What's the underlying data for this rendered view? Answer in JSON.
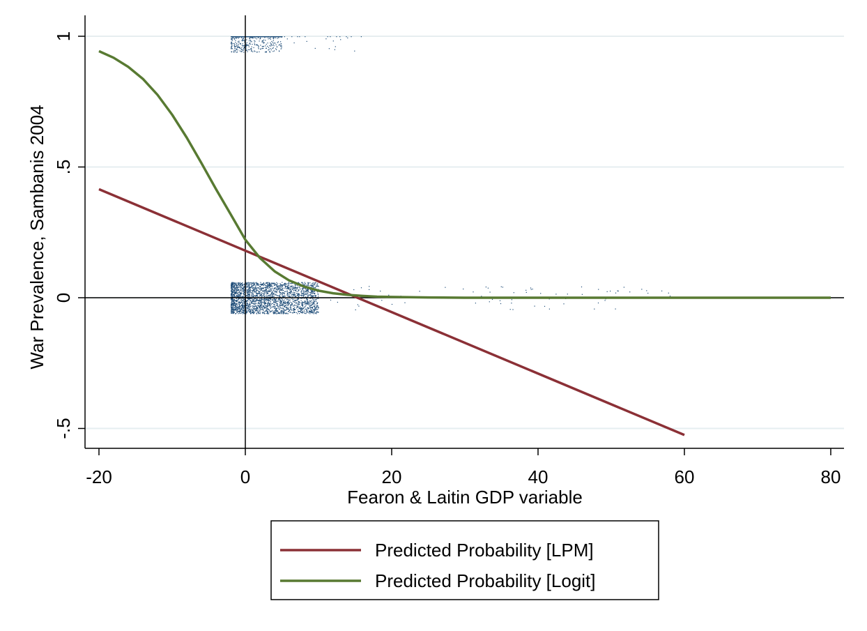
{
  "chart_data": {
    "type": "scatter",
    "title": "",
    "xlabel": "Fearon & Laitin GDP variable",
    "ylabel": "War Prevalence, Sambanis 2004",
    "xlim": [
      -22,
      82
    ],
    "ylim": [
      -0.58,
      1.05
    ],
    "xticks": [
      -20,
      0,
      20,
      40,
      60,
      80
    ],
    "xtick_labels": [
      "-20",
      "0",
      "20",
      "40",
      "60",
      "80"
    ],
    "yticks": [
      -0.5,
      0,
      0.5,
      1
    ],
    "ytick_labels": [
      "-.5",
      "0",
      ".5",
      "1"
    ],
    "grid": "horizontal",
    "reference_lines": {
      "x": 0,
      "y": 0
    },
    "legend_position": "bottom",
    "series": [
      {
        "name": "Predicted Probability [LPM]",
        "kind": "line",
        "color": "#8b3036",
        "x": [
          -20,
          60
        ],
        "y": [
          0.415,
          -0.525
        ]
      },
      {
        "name": "Predicted Probability [Logit]",
        "kind": "line",
        "color": "#587a32",
        "x": [
          -20,
          -18,
          -16,
          -14,
          -12,
          -10,
          -8,
          -6,
          -4,
          -2,
          0,
          2,
          4,
          6,
          8,
          10,
          12,
          14,
          16,
          18,
          20,
          25,
          30,
          40,
          50,
          60,
          70,
          80
        ],
        "y": [
          0.943,
          0.918,
          0.883,
          0.837,
          0.776,
          0.7,
          0.612,
          0.515,
          0.415,
          0.319,
          0.222,
          0.152,
          0.101,
          0.066,
          0.043,
          0.027,
          0.017,
          0.011,
          0.007,
          0.004,
          0.003,
          0.001,
          0.0,
          0.0,
          0.0,
          0.0,
          0.0,
          0.0
        ]
      },
      {
        "kind": "scatter",
        "color": "#1e4d78",
        "groups": [
          {
            "y": 0,
            "x_min": -2,
            "x_max": 60,
            "core_max": 10
          },
          {
            "y": 1,
            "x_min": -2,
            "x_max": 16,
            "core_max": 5
          }
        ]
      }
    ]
  }
}
